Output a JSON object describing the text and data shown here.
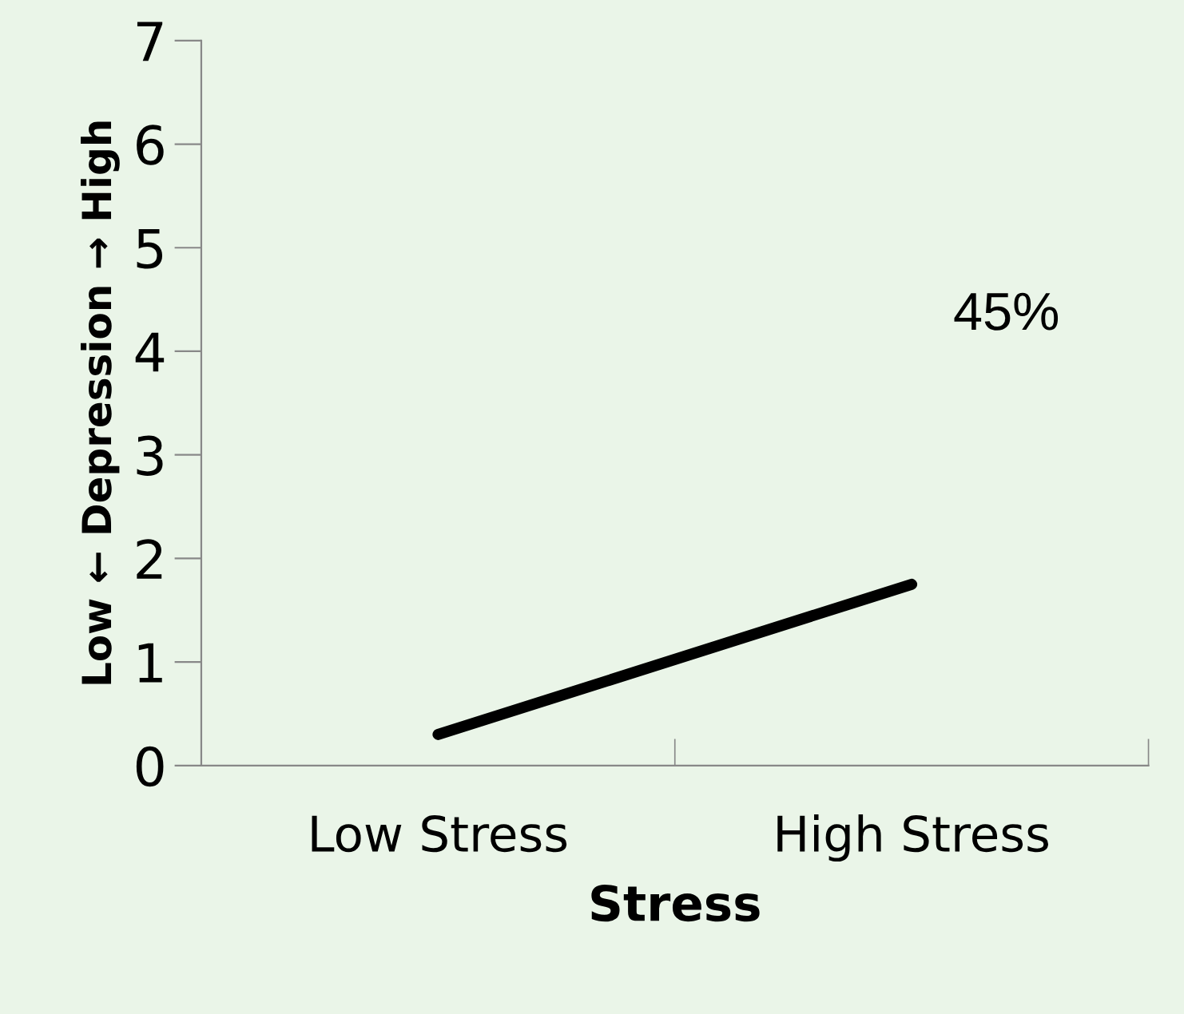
{
  "chart_data": {
    "type": "line",
    "xlabel": "Stress",
    "ylabel": "Low ← Depression → High",
    "categories": [
      "Low Stress",
      "High Stress"
    ],
    "series": [
      {
        "color": "#000000",
        "values": [
          0.3,
          1.75
        ]
      }
    ],
    "ylim": [
      0,
      7
    ],
    "yticks": [
      0,
      1,
      2,
      3,
      4,
      5,
      6,
      7
    ],
    "grid": false,
    "legend": false,
    "marker": "none",
    "line_style": "solid",
    "annotations": [
      "45%"
    ]
  }
}
